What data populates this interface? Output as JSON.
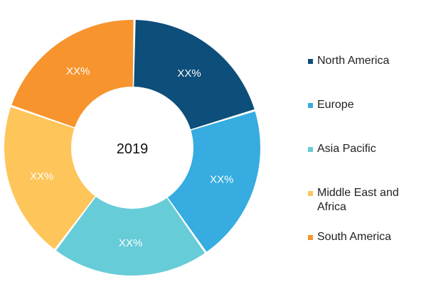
{
  "chart_data": {
    "type": "pie",
    "donut": true,
    "center_label": "2019",
    "categories": [
      "North America",
      "Europe",
      "Asia Pacific",
      "Middle East and Africa",
      "South America"
    ],
    "values": [
      20,
      20,
      20,
      20,
      20
    ],
    "slice_labels": [
      "XX%",
      "XX%",
      "XX%",
      "XX%",
      "XX%"
    ],
    "colors": [
      "#0d4e7a",
      "#36ace0",
      "#66ccd8",
      "#fec55a",
      "#f7942d"
    ],
    "legend_placement": "right"
  }
}
